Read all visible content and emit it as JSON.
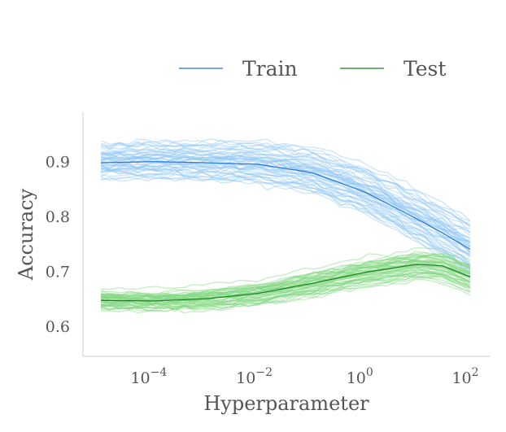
{
  "chart_data": {
    "type": "line",
    "xlabel": "Hyperparameter",
    "ylabel": "Accuracy",
    "x_scale": "log",
    "xlim": [
      1e-05,
      100
    ],
    "ylim": [
      0.545,
      0.99
    ],
    "x_ticks": [
      {
        "value": 0.0001,
        "base": "10",
        "exp": "−4"
      },
      {
        "value": 0.01,
        "base": "10",
        "exp": "−2"
      },
      {
        "value": 1,
        "base": "10",
        "exp": "0"
      },
      {
        "value": 100,
        "base": "10",
        "exp": "2"
      }
    ],
    "y_ticks": [
      {
        "value": 0.6,
        "label": "0.6"
      },
      {
        "value": 0.7,
        "label": "0.7"
      },
      {
        "value": 0.8,
        "label": "0.8"
      },
      {
        "value": 0.9,
        "label": "0.9"
      }
    ],
    "grid": false,
    "legend_position": "top",
    "x": [
      1e-05,
      0.0001,
      0.001,
      0.01,
      0.1,
      1,
      10,
      30,
      100
    ],
    "series": [
      {
        "name": "Train",
        "color": "#1f77d4",
        "band_color": "#8ec5f5",
        "values": [
          0.898,
          0.9,
          0.898,
          0.895,
          0.88,
          0.845,
          0.795,
          0.77,
          0.74
        ],
        "runs": 50,
        "band_spread": 0.03
      },
      {
        "name": "Test",
        "color": "#1b7f1b",
        "band_color": "#7ed67e",
        "values": [
          0.647,
          0.646,
          0.65,
          0.66,
          0.678,
          0.698,
          0.713,
          0.71,
          0.69
        ],
        "runs": 50,
        "band_spread": 0.022
      }
    ]
  }
}
